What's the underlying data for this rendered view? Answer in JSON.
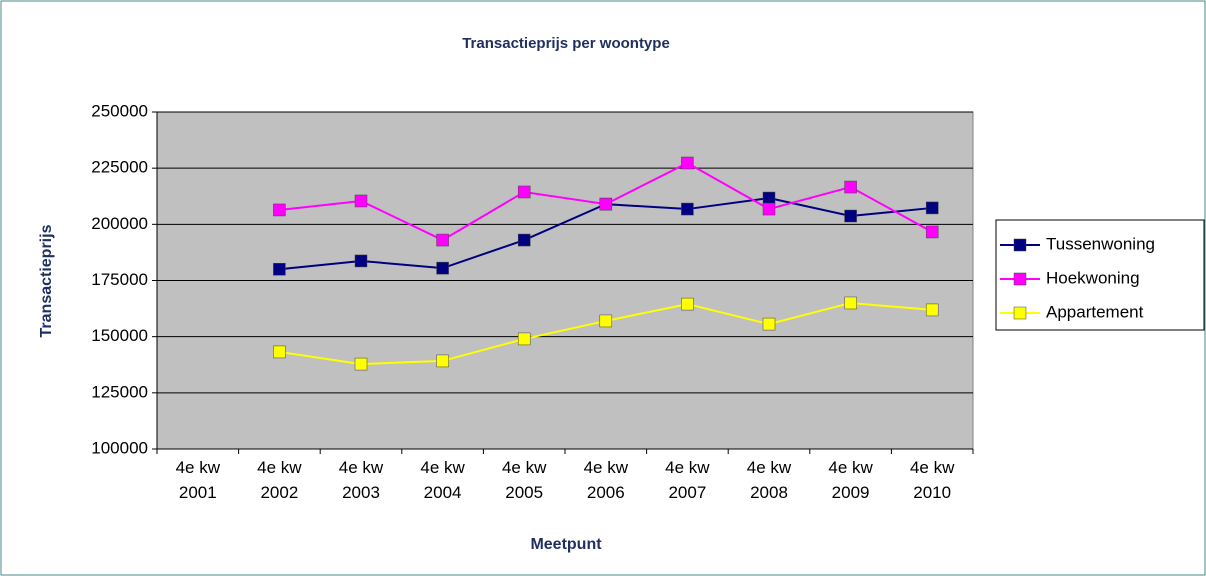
{
  "chart_data": {
    "type": "line",
    "title": "Transactieprijs per woontype",
    "x_label": "Meetpunt",
    "y_label": "Transactieprijs",
    "categories": [
      "4e kw 2001",
      "4e kw 2002",
      "4e kw 2003",
      "4e kw 2004",
      "4e kw 2005",
      "4e kw 2006",
      "4e kw 2007",
      "4e kw 2008",
      "4e kw 2009",
      "4e kw 2010"
    ],
    "series": [
      {
        "name": "Tussenwoning",
        "color": "#000080",
        "values": [
          null,
          180000,
          183700,
          180500,
          193000,
          209000,
          206800,
          211700,
          203700,
          207300
        ]
      },
      {
        "name": "Hoekwoning",
        "color": "#ff00ff",
        "values": [
          null,
          206400,
          210400,
          193000,
          214400,
          209000,
          227300,
          206800,
          216600,
          196600
        ]
      },
      {
        "name": "Appartement",
        "color": "#ffff00",
        "values": [
          null,
          143200,
          137800,
          139200,
          149000,
          157000,
          164500,
          155600,
          165000,
          161900
        ]
      }
    ],
    "ylim": [
      100000,
      250000
    ],
    "yticks": [
      100000,
      125000,
      150000,
      175000,
      200000,
      225000,
      250000
    ],
    "grid": true,
    "legend": "right"
  }
}
